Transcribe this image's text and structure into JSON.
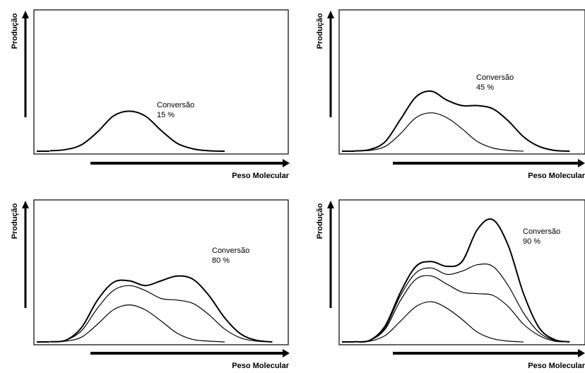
{
  "chart_data": [
    {
      "type": "line",
      "ylabel": "Produção",
      "xlabel": "Peso Molecular",
      "annotation": {
        "title": "Conversão",
        "value": "15 %"
      },
      "series": [
        {
          "values": [
            [
              0.1,
              0.5
            ],
            [
              0.2,
              2
            ],
            [
              0.3,
              8
            ],
            [
              0.4,
              24
            ],
            [
              0.5,
              44
            ],
            [
              0.6,
              50
            ],
            [
              0.7,
              44
            ],
            [
              0.8,
              26
            ],
            [
              0.9,
              10
            ],
            [
              1.0,
              3
            ],
            [
              1.1,
              0.5
            ],
            [
              1.2,
              0
            ]
          ]
        }
      ]
    },
    {
      "type": "line",
      "ylabel": "Produção",
      "xlabel": "Peso Molecular",
      "annotation": {
        "title": "Conversão",
        "value": "45 %"
      },
      "series": [
        {
          "values": [
            [
              0.1,
              0.3
            ],
            [
              0.2,
              1
            ],
            [
              0.3,
              6
            ],
            [
              0.4,
              22
            ],
            [
              0.5,
              42
            ],
            [
              0.6,
              48
            ],
            [
              0.7,
              42
            ],
            [
              0.8,
              28
            ],
            [
              0.9,
              12
            ],
            [
              1.0,
              4
            ],
            [
              1.1,
              1
            ],
            [
              1.2,
              0
            ]
          ]
        },
        {
          "values": [
            [
              0.1,
              0.3
            ],
            [
              0.2,
              2
            ],
            [
              0.3,
              12
            ],
            [
              0.4,
              40
            ],
            [
              0.5,
              68
            ],
            [
              0.6,
              75
            ],
            [
              0.7,
              64
            ],
            [
              0.8,
              57
            ],
            [
              0.9,
              57
            ],
            [
              1.0,
              53
            ],
            [
              1.1,
              38
            ],
            [
              1.2,
              18
            ],
            [
              1.3,
              6
            ],
            [
              1.4,
              1
            ],
            [
              1.5,
              0
            ]
          ]
        }
      ]
    },
    {
      "type": "line",
      "ylabel": "Produção",
      "xlabel": "Peso Molecular",
      "annotation": {
        "title": "Conversão",
        "value": "80 %"
      },
      "series": [
        {
          "values": [
            [
              0.1,
              0.3
            ],
            [
              0.2,
              1
            ],
            [
              0.3,
              6
            ],
            [
              0.4,
              22
            ],
            [
              0.5,
              40
            ],
            [
              0.6,
              46
            ],
            [
              0.7,
              40
            ],
            [
              0.8,
              26
            ],
            [
              0.9,
              11
            ],
            [
              1.0,
              3
            ],
            [
              1.1,
              1
            ],
            [
              1.2,
              0
            ]
          ]
        },
        {
          "values": [
            [
              0.1,
              0.3
            ],
            [
              0.2,
              2
            ],
            [
              0.3,
              14
            ],
            [
              0.4,
              42
            ],
            [
              0.5,
              64
            ],
            [
              0.6,
              70
            ],
            [
              0.7,
              64
            ],
            [
              0.8,
              54
            ],
            [
              0.9,
              52
            ],
            [
              1.0,
              48
            ],
            [
              1.1,
              34
            ],
            [
              1.2,
              16
            ],
            [
              1.3,
              5
            ],
            [
              1.4,
              1
            ],
            [
              1.5,
              0
            ]
          ]
        },
        {
          "values": [
            [
              0.1,
              0.3
            ],
            [
              0.2,
              2
            ],
            [
              0.3,
              18
            ],
            [
              0.4,
              52
            ],
            [
              0.5,
              74
            ],
            [
              0.6,
              76
            ],
            [
              0.7,
              70
            ],
            [
              0.8,
              76
            ],
            [
              0.9,
              82
            ],
            [
              1.0,
              78
            ],
            [
              1.1,
              58
            ],
            [
              1.2,
              30
            ],
            [
              1.3,
              10
            ],
            [
              1.4,
              2
            ],
            [
              1.5,
              0
            ]
          ]
        }
      ]
    },
    {
      "type": "line",
      "ylabel": "Produção",
      "xlabel": "Peso Molecular",
      "annotation": {
        "title": "Conversão",
        "value": "90 %"
      },
      "series": [
        {
          "values": [
            [
              0.1,
              0.3
            ],
            [
              0.2,
              1
            ],
            [
              0.3,
              8
            ],
            [
              0.4,
              26
            ],
            [
              0.5,
              44
            ],
            [
              0.6,
              50
            ],
            [
              0.7,
              42
            ],
            [
              0.8,
              28
            ],
            [
              0.9,
              12
            ],
            [
              1.0,
              4
            ],
            [
              1.1,
              1
            ],
            [
              1.2,
              0
            ]
          ]
        },
        {
          "values": [
            [
              0.1,
              0.3
            ],
            [
              0.2,
              2
            ],
            [
              0.3,
              16
            ],
            [
              0.4,
              52
            ],
            [
              0.5,
              78
            ],
            [
              0.6,
              82
            ],
            [
              0.7,
              72
            ],
            [
              0.8,
              62
            ],
            [
              0.9,
              60
            ],
            [
              1.0,
              58
            ],
            [
              1.1,
              44
            ],
            [
              1.2,
              22
            ],
            [
              1.3,
              8
            ],
            [
              1.4,
              1
            ],
            [
              1.5,
              0
            ]
          ]
        },
        {
          "values": [
            [
              0.1,
              0.3
            ],
            [
              0.2,
              2
            ],
            [
              0.3,
              18
            ],
            [
              0.4,
              58
            ],
            [
              0.5,
              86
            ],
            [
              0.6,
              92
            ],
            [
              0.7,
              84
            ],
            [
              0.8,
              88
            ],
            [
              0.9,
              96
            ],
            [
              1.0,
              94
            ],
            [
              1.1,
              70
            ],
            [
              1.2,
              36
            ],
            [
              1.3,
              12
            ],
            [
              1.4,
              2
            ],
            [
              1.5,
              0
            ]
          ]
        },
        {
          "values": [
            [
              0.1,
              0.3
            ],
            [
              0.2,
              2
            ],
            [
              0.3,
              20
            ],
            [
              0.4,
              62
            ],
            [
              0.5,
              94
            ],
            [
              0.6,
              100
            ],
            [
              0.7,
              94
            ],
            [
              0.8,
              100
            ],
            [
              0.9,
              140
            ],
            [
              1.0,
              152
            ],
            [
              1.1,
              120
            ],
            [
              1.2,
              60
            ],
            [
              1.3,
              18
            ],
            [
              1.4,
              3
            ],
            [
              1.5,
              0
            ]
          ]
        }
      ]
    }
  ]
}
